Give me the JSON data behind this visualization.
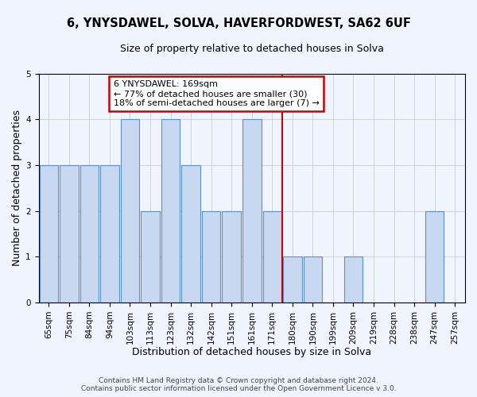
{
  "title1": "6, YNYSDAWEL, SOLVA, HAVERFORDWEST, SA62 6UF",
  "title2": "Size of property relative to detached houses in Solva",
  "xlabel": "Distribution of detached houses by size in Solva",
  "ylabel": "Number of detached properties",
  "categories": [
    "65sqm",
    "75sqm",
    "84sqm",
    "94sqm",
    "103sqm",
    "113sqm",
    "123sqm",
    "132sqm",
    "142sqm",
    "151sqm",
    "161sqm",
    "171sqm",
    "180sqm",
    "190sqm",
    "199sqm",
    "209sqm",
    "219sqm",
    "228sqm",
    "238sqm",
    "247sqm",
    "257sqm"
  ],
  "values": [
    3,
    3,
    3,
    3,
    4,
    2,
    4,
    3,
    2,
    2,
    4,
    2,
    1,
    1,
    0,
    1,
    0,
    0,
    0,
    2,
    0
  ],
  "bar_color": "#c8d8f0",
  "bar_edge_color": "#5b8fd4",
  "vline_position": 11.5,
  "vline_color": "#cc0000",
  "annotation_line1": "6 YNYSDAWEL: 169sqm",
  "annotation_line2": "← 77% of detached houses are smaller (30)",
  "annotation_line3": "18% of semi-detached houses are larger (7) →",
  "annotation_box_color": "#cc0000",
  "ylim": [
    0,
    5
  ],
  "yticks": [
    0,
    1,
    2,
    3,
    4,
    5
  ],
  "footer1": "Contains HM Land Registry data © Crown copyright and database right 2024.",
  "footer2": "Contains public sector information licensed under the Open Government Licence v 3.0.",
  "background_color": "#f0f4ff",
  "grid_color": "#cccccc",
  "title1_fontsize": 10.5,
  "title2_fontsize": 9,
  "xlabel_fontsize": 9,
  "ylabel_fontsize": 9,
  "tick_fontsize": 7.5,
  "annot_fontsize": 8,
  "footer_fontsize": 6.5
}
